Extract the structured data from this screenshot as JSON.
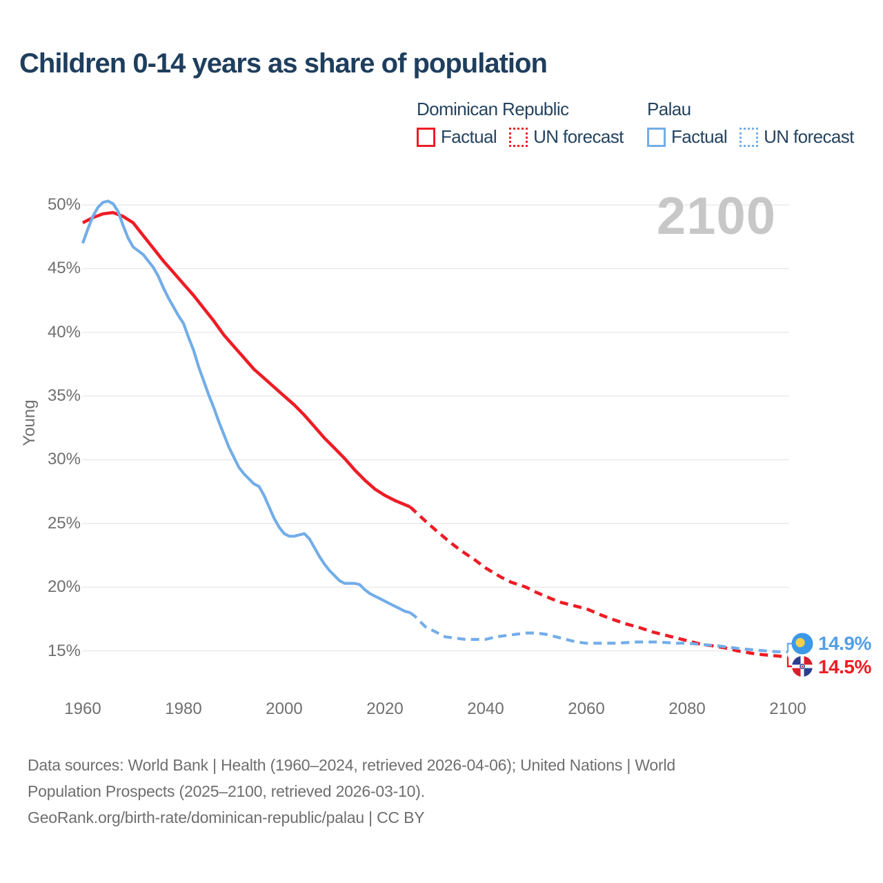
{
  "title": "Children 0-14 years as share of population",
  "watermark": "2100",
  "legend": {
    "groups": [
      {
        "name": "Dominican Republic",
        "color": "#ee1c25",
        "items": [
          {
            "label": "Factual",
            "style": "solid"
          },
          {
            "label": "UN forecast",
            "style": "dotted"
          }
        ]
      },
      {
        "name": "Palau",
        "color": "#72ade8",
        "items": [
          {
            "label": "Factual",
            "style": "solid"
          },
          {
            "label": "UN forecast",
            "style": "dotted"
          }
        ]
      }
    ]
  },
  "axes": {
    "y_label": "Young"
  },
  "end_labels": [
    {
      "country": "Palau",
      "label": "14.9%",
      "value": 14.9,
      "color": "#549fe3",
      "flag": "palau-flag"
    },
    {
      "country": "Dominican Republic",
      "label": "14.5%",
      "value": 14.5,
      "color": "#ee1c25",
      "flag": "dominican-republic-flag"
    }
  ],
  "footer": {
    "lines": [
      "Data sources: World Bank | Health (1960–2024, retrieved 2026-04-06); United Nations | World",
      "Population Prospects (2025–2100, retrieved 2026-03-10).",
      "GeoRank.org/birth-rate/dominican-republic/palau | CC BY"
    ]
  },
  "colors": {
    "red": "#ee1c25",
    "blue": "#72ade8",
    "title_navy": "#1f3e5d",
    "axis_gray": "#6f6f6f",
    "gridline": "#e7e7e7",
    "watermark_gray": "#c7c7c7",
    "footer_gray": "#6e6e6e",
    "palau_flag_bg": "#3b99e8",
    "palau_flag_moon": "#f2d04b",
    "dr_flag_blue": "#2b3d8f",
    "dr_flag_red": "#d71f2c"
  },
  "chart_data": {
    "type": "line",
    "title": "Children 0-14 years as share of population",
    "xlabel": "",
    "ylabel": "Young",
    "x_ticks": [
      1960,
      1980,
      2000,
      2020,
      2040,
      2060,
      2080,
      2100
    ],
    "y_ticks": [
      "15%",
      "20%",
      "25%",
      "30%",
      "35%",
      "40%",
      "45%",
      "50%"
    ],
    "xlim": [
      1958,
      2103
    ],
    "ylim": [
      13,
      52
    ],
    "grid": "horizontal",
    "legend_position": "top-right",
    "series": [
      {
        "id": "dominican-republic-factual",
        "name": "Dominican Republic — Factual",
        "style": "solid",
        "color": "#ee1c25",
        "width": 4.6,
        "points": [
          [
            1960,
            48.6
          ],
          [
            1962,
            49.0
          ],
          [
            1964,
            49.3
          ],
          [
            1966,
            49.4
          ],
          [
            1968,
            49.1
          ],
          [
            1970,
            48.6
          ],
          [
            1972,
            47.6
          ],
          [
            1974,
            46.6
          ],
          [
            1976,
            45.6
          ],
          [
            1978,
            44.7
          ],
          [
            1980,
            43.8
          ],
          [
            1982,
            42.9
          ],
          [
            1984,
            41.9
          ],
          [
            1986,
            40.9
          ],
          [
            1988,
            39.8
          ],
          [
            1990,
            38.9
          ],
          [
            1992,
            38.0
          ],
          [
            1994,
            37.1
          ],
          [
            1996,
            36.4
          ],
          [
            1998,
            35.7
          ],
          [
            2000,
            35.0
          ],
          [
            2002,
            34.3
          ],
          [
            2004,
            33.5
          ],
          [
            2006,
            32.6
          ],
          [
            2008,
            31.7
          ],
          [
            2010,
            30.9
          ],
          [
            2012,
            30.1
          ],
          [
            2014,
            29.2
          ],
          [
            2016,
            28.4
          ],
          [
            2018,
            27.7
          ],
          [
            2020,
            27.2
          ],
          [
            2022,
            26.8
          ],
          [
            2025,
            26.3
          ]
        ]
      },
      {
        "id": "dominican-republic-forecast",
        "name": "Dominican Republic — UN forecast",
        "style": "dashed",
        "color": "#ee1c25",
        "width": 4.6,
        "points": [
          [
            2025,
            26.3
          ],
          [
            2028,
            25.2
          ],
          [
            2030,
            24.5
          ],
          [
            2033,
            23.5
          ],
          [
            2035,
            22.9
          ],
          [
            2038,
            22.1
          ],
          [
            2040,
            21.5
          ],
          [
            2043,
            20.8
          ],
          [
            2045,
            20.4
          ],
          [
            2048,
            20.0
          ],
          [
            2050,
            19.6
          ],
          [
            2053,
            19.1
          ],
          [
            2055,
            18.8
          ],
          [
            2058,
            18.5
          ],
          [
            2060,
            18.3
          ],
          [
            2063,
            17.8
          ],
          [
            2065,
            17.5
          ],
          [
            2068,
            17.1
          ],
          [
            2070,
            16.9
          ],
          [
            2073,
            16.5
          ],
          [
            2075,
            16.3
          ],
          [
            2078,
            16.0
          ],
          [
            2080,
            15.8
          ],
          [
            2083,
            15.5
          ],
          [
            2085,
            15.4
          ],
          [
            2088,
            15.2
          ],
          [
            2090,
            15.0
          ],
          [
            2093,
            14.8
          ],
          [
            2095,
            14.7
          ],
          [
            2098,
            14.6
          ],
          [
            2100,
            14.5
          ]
        ]
      },
      {
        "id": "palau-factual",
        "name": "Palau — Factual",
        "style": "solid",
        "color": "#72ade8",
        "width": 4.2,
        "points": [
          [
            1960,
            47.0
          ],
          [
            1961,
            48.1
          ],
          [
            1962,
            49.1
          ],
          [
            1963,
            49.8
          ],
          [
            1964,
            50.2
          ],
          [
            1965,
            50.3
          ],
          [
            1966,
            50.1
          ],
          [
            1967,
            49.5
          ],
          [
            1968,
            48.4
          ],
          [
            1969,
            47.4
          ],
          [
            1970,
            46.7
          ],
          [
            1971,
            46.4
          ],
          [
            1972,
            46.1
          ],
          [
            1973,
            45.6
          ],
          [
            1974,
            45.1
          ],
          [
            1975,
            44.4
          ],
          [
            1976,
            43.5
          ],
          [
            1977,
            42.7
          ],
          [
            1978,
            42.0
          ],
          [
            1979,
            41.3
          ],
          [
            1980,
            40.7
          ],
          [
            1981,
            39.6
          ],
          [
            1982,
            38.6
          ],
          [
            1983,
            37.3
          ],
          [
            1984,
            36.2
          ],
          [
            1985,
            35.1
          ],
          [
            1986,
            34.1
          ],
          [
            1987,
            33.0
          ],
          [
            1988,
            32.0
          ],
          [
            1989,
            31.0
          ],
          [
            1990,
            30.2
          ],
          [
            1991,
            29.4
          ],
          [
            1992,
            28.9
          ],
          [
            1993,
            28.5
          ],
          [
            1994,
            28.1
          ],
          [
            1995,
            27.9
          ],
          [
            1996,
            27.2
          ],
          [
            1997,
            26.3
          ],
          [
            1998,
            25.4
          ],
          [
            1999,
            24.7
          ],
          [
            2000,
            24.2
          ],
          [
            2001,
            24.0
          ],
          [
            2002,
            24.0
          ],
          [
            2003,
            24.1
          ],
          [
            2004,
            24.2
          ],
          [
            2005,
            23.8
          ],
          [
            2006,
            23.1
          ],
          [
            2007,
            22.4
          ],
          [
            2008,
            21.8
          ],
          [
            2009,
            21.3
          ],
          [
            2010,
            20.9
          ],
          [
            2011,
            20.5
          ],
          [
            2012,
            20.3
          ],
          [
            2013,
            20.3
          ],
          [
            2014,
            20.3
          ],
          [
            2015,
            20.2
          ],
          [
            2016,
            19.8
          ],
          [
            2017,
            19.5
          ],
          [
            2018,
            19.3
          ],
          [
            2019,
            19.1
          ],
          [
            2020,
            18.9
          ],
          [
            2021,
            18.7
          ],
          [
            2022,
            18.5
          ],
          [
            2023,
            18.3
          ],
          [
            2024,
            18.1
          ],
          [
            2025,
            18.0
          ]
        ]
      },
      {
        "id": "palau-forecast",
        "name": "Palau — UN forecast",
        "style": "dashed",
        "color": "#72ade8",
        "width": 4.2,
        "points": [
          [
            2025,
            18.0
          ],
          [
            2026,
            17.7
          ],
          [
            2027,
            17.3
          ],
          [
            2028,
            16.9
          ],
          [
            2029,
            16.7
          ],
          [
            2030,
            16.5
          ],
          [
            2031,
            16.3
          ],
          [
            2032,
            16.1
          ],
          [
            2034,
            16.0
          ],
          [
            2036,
            15.9
          ],
          [
            2038,
            15.9
          ],
          [
            2040,
            15.9
          ],
          [
            2042,
            16.1
          ],
          [
            2044,
            16.2
          ],
          [
            2046,
            16.3
          ],
          [
            2048,
            16.4
          ],
          [
            2050,
            16.4
          ],
          [
            2052,
            16.3
          ],
          [
            2054,
            16.1
          ],
          [
            2056,
            15.9
          ],
          [
            2058,
            15.7
          ],
          [
            2060,
            15.6
          ],
          [
            2063,
            15.6
          ],
          [
            2066,
            15.6
          ],
          [
            2070,
            15.7
          ],
          [
            2074,
            15.7
          ],
          [
            2078,
            15.6
          ],
          [
            2080,
            15.6
          ],
          [
            2083,
            15.5
          ],
          [
            2086,
            15.4
          ],
          [
            2090,
            15.2
          ],
          [
            2094,
            15.05
          ],
          [
            2097,
            14.95
          ],
          [
            2100,
            14.9
          ]
        ]
      }
    ],
    "end_values": {
      "palau": 14.9,
      "dominican_republic": 14.5
    }
  }
}
